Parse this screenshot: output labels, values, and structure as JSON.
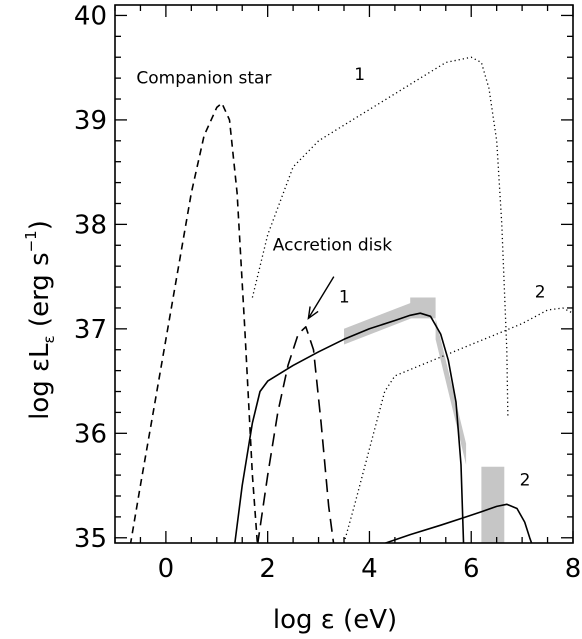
{
  "chart_data": {
    "type": "line",
    "xlabel": "log ε (eV)",
    "ylabel_main": "log  εL",
    "ylabel_sub": "ε",
    "ylabel_units": " (erg s",
    "ylabel_sup": "−1",
    "ylabel_close": ")",
    "xlim": [
      -1.0,
      8.0
    ],
    "ylim": [
      34.95,
      40.1
    ],
    "x_ticks": [
      0,
      2,
      4,
      6,
      8
    ],
    "y_ticks": [
      35,
      36,
      37,
      38,
      39,
      40
    ],
    "series": [
      {
        "id": "companion-star-curve",
        "style": "shortdash",
        "x": [
          -0.7,
          -0.5,
          -0.25,
          0.0,
          0.25,
          0.5,
          0.75,
          1.0,
          1.1,
          1.25,
          1.4,
          1.55,
          1.7,
          1.8
        ],
        "y": [
          34.93,
          35.5,
          36.2,
          36.9,
          37.6,
          38.3,
          38.85,
          39.12,
          39.16,
          39.0,
          38.3,
          37.0,
          35.6,
          34.93
        ]
      },
      {
        "id": "accretion-disk-curve",
        "style": "longdash",
        "x": [
          1.8,
          2.0,
          2.2,
          2.4,
          2.6,
          2.75,
          2.9,
          3.05,
          3.2,
          3.3
        ],
        "y": [
          34.93,
          35.6,
          36.2,
          36.65,
          36.95,
          37.02,
          36.8,
          36.1,
          35.3,
          34.93
        ]
      },
      {
        "id": "model-1-solid",
        "style": "solid",
        "x": [
          1.35,
          1.5,
          1.7,
          1.85,
          2.0,
          2.5,
          3.0,
          3.5,
          4.0,
          4.5,
          4.8,
          5.0,
          5.2,
          5.4,
          5.55,
          5.7,
          5.8,
          5.85
        ],
        "y": [
          34.93,
          35.5,
          36.1,
          36.4,
          36.5,
          36.65,
          36.78,
          36.9,
          37.0,
          37.08,
          37.13,
          37.15,
          37.12,
          36.95,
          36.7,
          36.3,
          35.7,
          34.93
        ]
      },
      {
        "id": "model-1-dotted",
        "style": "dotted",
        "x": [
          1.7,
          2.0,
          2.5,
          3.0,
          3.5,
          4.0,
          4.5,
          5.0,
          5.5,
          6.0,
          6.2,
          6.35,
          6.5,
          6.6,
          6.7,
          6.72
        ],
        "y": [
          37.3,
          37.9,
          38.55,
          38.8,
          38.95,
          39.1,
          39.25,
          39.4,
          39.55,
          39.6,
          39.55,
          39.3,
          38.8,
          38.0,
          36.8,
          36.15
        ]
      },
      {
        "id": "model-2-solid",
        "style": "solid",
        "x": [
          4.2,
          4.8,
          5.4,
          5.9,
          6.2,
          6.5,
          6.7,
          6.9,
          7.05,
          7.15,
          7.2
        ],
        "y": [
          34.93,
          35.03,
          35.12,
          35.2,
          35.25,
          35.3,
          35.32,
          35.28,
          35.15,
          35.0,
          34.93
        ]
      },
      {
        "id": "model-2-dotted",
        "style": "dotted",
        "x": [
          3.5,
          3.7,
          4.0,
          4.3,
          4.5,
          5.0,
          5.5,
          6.0,
          6.5,
          7.0,
          7.5,
          7.8,
          8.0
        ],
        "y": [
          34.95,
          35.3,
          35.85,
          36.4,
          36.55,
          36.65,
          36.75,
          36.85,
          36.95,
          37.05,
          37.18,
          37.2,
          37.15
        ]
      }
    ],
    "shaded_regions": [
      {
        "id": "band-a",
        "kind": "parallelogram",
        "x": [
          3.5,
          4.82
        ],
        "y_top": [
          37.0,
          37.25
        ],
        "y_bot": [
          36.85,
          37.1
        ]
      },
      {
        "id": "band-b",
        "kind": "box",
        "x": [
          4.8,
          5.3
        ],
        "y": [
          37.1,
          37.3
        ]
      },
      {
        "id": "band-c",
        "kind": "parallelogram",
        "x": [
          5.3,
          5.9
        ],
        "y_top": [
          37.1,
          35.9
        ],
        "y_bot": [
          36.9,
          35.7
        ]
      },
      {
        "id": "band-d",
        "kind": "box",
        "x": [
          6.2,
          6.65
        ],
        "y": [
          34.95,
          35.68
        ]
      }
    ],
    "annotations": [
      {
        "id": "label-companion-star",
        "text": "Companion star",
        "x": -0.58,
        "y": 39.35
      },
      {
        "id": "label-1-top",
        "text": "1",
        "x": 3.7,
        "y": 39.38
      },
      {
        "id": "label-accretion-disk",
        "text": "Accretion disk",
        "x": 2.1,
        "y": 37.75
      },
      {
        "id": "label-1-mid",
        "text": "1",
        "x": 3.4,
        "y": 37.25
      },
      {
        "id": "label-2-right",
        "text": "2",
        "x": 7.25,
        "y": 37.3
      },
      {
        "id": "label-2-low",
        "text": "2",
        "x": 6.95,
        "y": 35.5
      }
    ],
    "arrow": {
      "from": [
        3.3,
        37.5
      ],
      "to": [
        2.8,
        37.1
      ]
    }
  }
}
